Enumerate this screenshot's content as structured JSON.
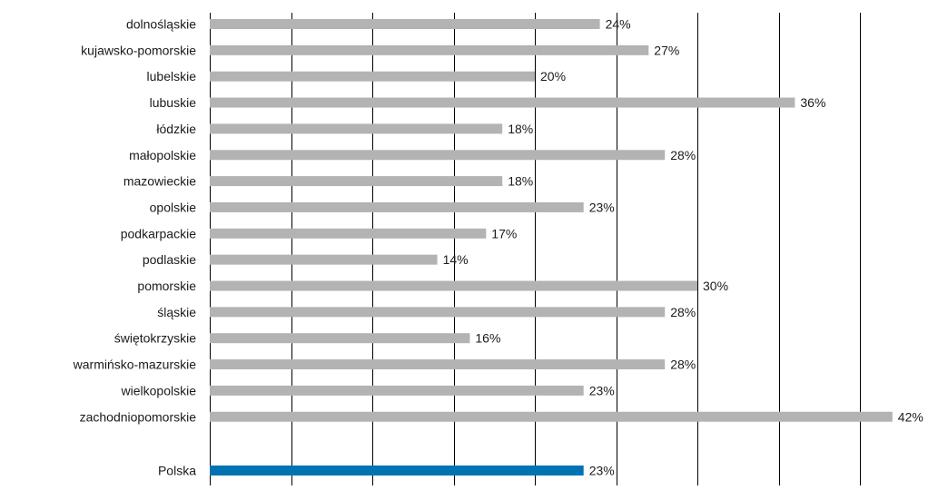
{
  "chart_data": {
    "type": "bar",
    "orientation": "horizontal",
    "title": "",
    "xlabel": "",
    "ylabel": "",
    "xlim": [
      0,
      40
    ],
    "gridlines_x": [
      0,
      5,
      10,
      15,
      20,
      25,
      30,
      35,
      40
    ],
    "grid": true,
    "legend": "none",
    "unit_suffix": "%",
    "categories": [
      "dolnośląskie",
      "kujawsko-pomorskie",
      "lubelskie",
      "lubuskie",
      "łódzkie",
      "małopolskie",
      "mazowieckie",
      "opolskie",
      "podkarpackie",
      "podlaskie",
      "pomorskie",
      "śląskie",
      "świętokrzyskie",
      "warmińsko-mazurskie",
      "wielkopolskie",
      "zachodniopomorskie",
      "Polska"
    ],
    "values": [
      24,
      27,
      20,
      36,
      18,
      28,
      18,
      23,
      17,
      14,
      30,
      28,
      16,
      28,
      23,
      42,
      23
    ],
    "value_labels": [
      "24%",
      "27%",
      "20%",
      "36%",
      "18%",
      "28%",
      "18%",
      "23%",
      "17%",
      "14%",
      "30%",
      "28%",
      "16%",
      "28%",
      "23%",
      "42%",
      "23%"
    ],
    "colors": {
      "default_bar": "#b3b3b3",
      "highlight_bar": "#0073b3",
      "gridline": "#000000",
      "text": "#1a1a1a"
    },
    "highlight_category": "Polska"
  }
}
